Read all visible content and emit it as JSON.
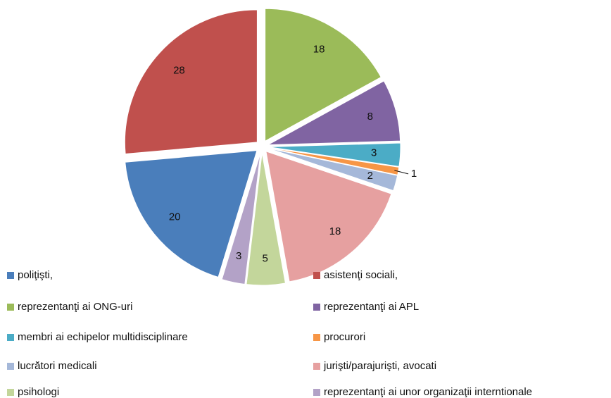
{
  "chart_data": {
    "type": "pie",
    "categories": [
      "poliţişti,",
      "asistenţi sociali,",
      "reprezentanţi ai ONG-uri",
      "reprezentanţi ai APL",
      "membri ai echipelor multidisciplinare",
      "procurori",
      "lucrători medicali",
      "jurişti/parajurişti, avocati",
      "psihologi",
      "reprezentanţi ai unor organizaţii interntionale"
    ],
    "values": [
      20,
      28,
      18,
      8,
      3,
      1,
      2,
      18,
      5,
      3
    ],
    "colors": [
      "#4a7ebb",
      "#c0504d",
      "#9bbb59",
      "#8064a2",
      "#4bacc6",
      "#f79646",
      "#a5b8d9",
      "#e6a0a0",
      "#c3d69b",
      "#b3a2c7"
    ],
    "legend": "bottom"
  }
}
